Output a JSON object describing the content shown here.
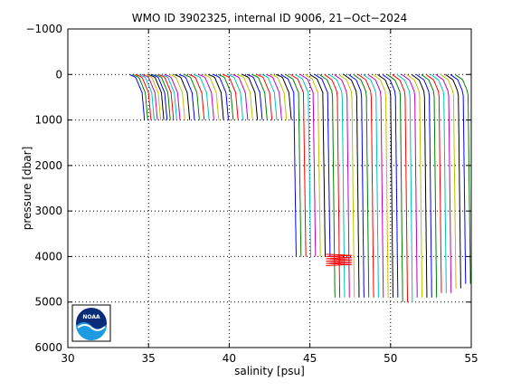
{
  "chart_data": {
    "type": "line",
    "title": "WMO ID 3902325, internal ID 9006, 21−Oct−2024",
    "xlabel": "salinity [psu]",
    "ylabel": "pressure [dbar]",
    "xlim": [
      30,
      55
    ],
    "ylim": [
      -1000,
      6000
    ],
    "y_reversed": true,
    "grid": true,
    "x_ticks": [
      30,
      35,
      40,
      45,
      50,
      55
    ],
    "x_tick_labels": [
      "30",
      "35",
      "40",
      "45",
      "50",
      "55"
    ],
    "y_ticks": [
      -1000,
      0,
      1000,
      2000,
      3000,
      4000,
      5000,
      6000
    ],
    "y_tick_labels": [
      "−1000",
      "0",
      "1000",
      "2000",
      "3000",
      "4000",
      "5000",
      "6000"
    ],
    "logo": "NOAA",
    "series_colors": [
      "#0000ff",
      "#008000",
      "#ff0000",
      "#00bfbf",
      "#bf00bf",
      "#bfbf00",
      "#000000"
    ],
    "profiles": [
      {
        "s0": 33.8,
        "depth": 1000
      },
      {
        "s0": 34.0,
        "depth": 1000
      },
      {
        "s0": 34.2,
        "depth": 1000
      },
      {
        "s0": 34.4,
        "depth": 1000
      },
      {
        "s0": 34.6,
        "depth": 1000
      },
      {
        "s0": 34.8,
        "depth": 1000
      },
      {
        "s0": 35.0,
        "depth": 1000
      },
      {
        "s0": 35.2,
        "depth": 1000
      },
      {
        "s0": 35.4,
        "depth": 1000
      },
      {
        "s0": 35.6,
        "depth": 1000
      },
      {
        "s0": 35.8,
        "depth": 1000
      },
      {
        "s0": 36.0,
        "depth": 1000
      },
      {
        "s0": 36.3,
        "depth": 1000
      },
      {
        "s0": 36.6,
        "depth": 1000
      },
      {
        "s0": 36.9,
        "depth": 1000
      },
      {
        "s0": 37.2,
        "depth": 1000
      },
      {
        "s0": 37.5,
        "depth": 1000
      },
      {
        "s0": 37.8,
        "depth": 1000
      },
      {
        "s0": 38.1,
        "depth": 1000
      },
      {
        "s0": 38.4,
        "depth": 1000
      },
      {
        "s0": 38.7,
        "depth": 1000
      },
      {
        "s0": 39.0,
        "depth": 1000
      },
      {
        "s0": 39.3,
        "depth": 1000
      },
      {
        "s0": 39.6,
        "depth": 1000
      },
      {
        "s0": 39.9,
        "depth": 1000
      },
      {
        "s0": 40.2,
        "depth": 1000
      },
      {
        "s0": 40.5,
        "depth": 1000
      },
      {
        "s0": 40.8,
        "depth": 1000
      },
      {
        "s0": 41.1,
        "depth": 1000
      },
      {
        "s0": 41.4,
        "depth": 1000
      },
      {
        "s0": 41.7,
        "depth": 1000
      },
      {
        "s0": 42.0,
        "depth": 1000
      },
      {
        "s0": 42.3,
        "depth": 1000
      },
      {
        "s0": 42.6,
        "depth": 1000
      },
      {
        "s0": 42.9,
        "depth": 1000
      },
      {
        "s0": 43.2,
        "depth": 4000
      },
      {
        "s0": 43.5,
        "depth": 4000
      },
      {
        "s0": 43.8,
        "depth": 4000
      },
      {
        "s0": 44.1,
        "depth": 4000
      },
      {
        "s0": 44.4,
        "depth": 4000
      },
      {
        "s0": 44.7,
        "depth": 4000
      },
      {
        "s0": 45.0,
        "depth": 4000
      },
      {
        "s0": 45.3,
        "depth": 4000
      },
      {
        "s0": 45.6,
        "depth": 4900
      },
      {
        "s0": 45.9,
        "depth": 4900
      },
      {
        "s0": 46.2,
        "depth": 4900
      },
      {
        "s0": 46.5,
        "depth": 4900
      },
      {
        "s0": 46.8,
        "depth": 4900
      },
      {
        "s0": 47.1,
        "depth": 4900
      },
      {
        "s0": 47.4,
        "depth": 4900
      },
      {
        "s0": 47.7,
        "depth": 4900
      },
      {
        "s0": 48.0,
        "depth": 4900
      },
      {
        "s0": 48.3,
        "depth": 4900
      },
      {
        "s0": 48.6,
        "depth": 4900
      },
      {
        "s0": 48.9,
        "depth": 4900
      },
      {
        "s0": 49.2,
        "depth": 4900
      },
      {
        "s0": 49.5,
        "depth": 4900
      },
      {
        "s0": 49.8,
        "depth": 5000
      },
      {
        "s0": 50.1,
        "depth": 5000
      },
      {
        "s0": 50.4,
        "depth": 5000
      },
      {
        "s0": 50.7,
        "depth": 4900
      },
      {
        "s0": 51.0,
        "depth": 4900
      },
      {
        "s0": 51.3,
        "depth": 4900
      },
      {
        "s0": 51.6,
        "depth": 4900
      },
      {
        "s0": 51.9,
        "depth": 4900
      },
      {
        "s0": 52.2,
        "depth": 4800
      },
      {
        "s0": 52.5,
        "depth": 4800
      },
      {
        "s0": 52.8,
        "depth": 4800
      },
      {
        "s0": 53.1,
        "depth": 4700
      },
      {
        "s0": 53.4,
        "depth": 4700
      },
      {
        "s0": 53.7,
        "depth": 4600
      },
      {
        "s0": 54.0,
        "depth": 4600
      }
    ],
    "anomaly": {
      "color": "#ff0000",
      "salinity_range": [
        46.0,
        47.6
      ],
      "pressure_range": [
        3950,
        4200
      ]
    }
  }
}
